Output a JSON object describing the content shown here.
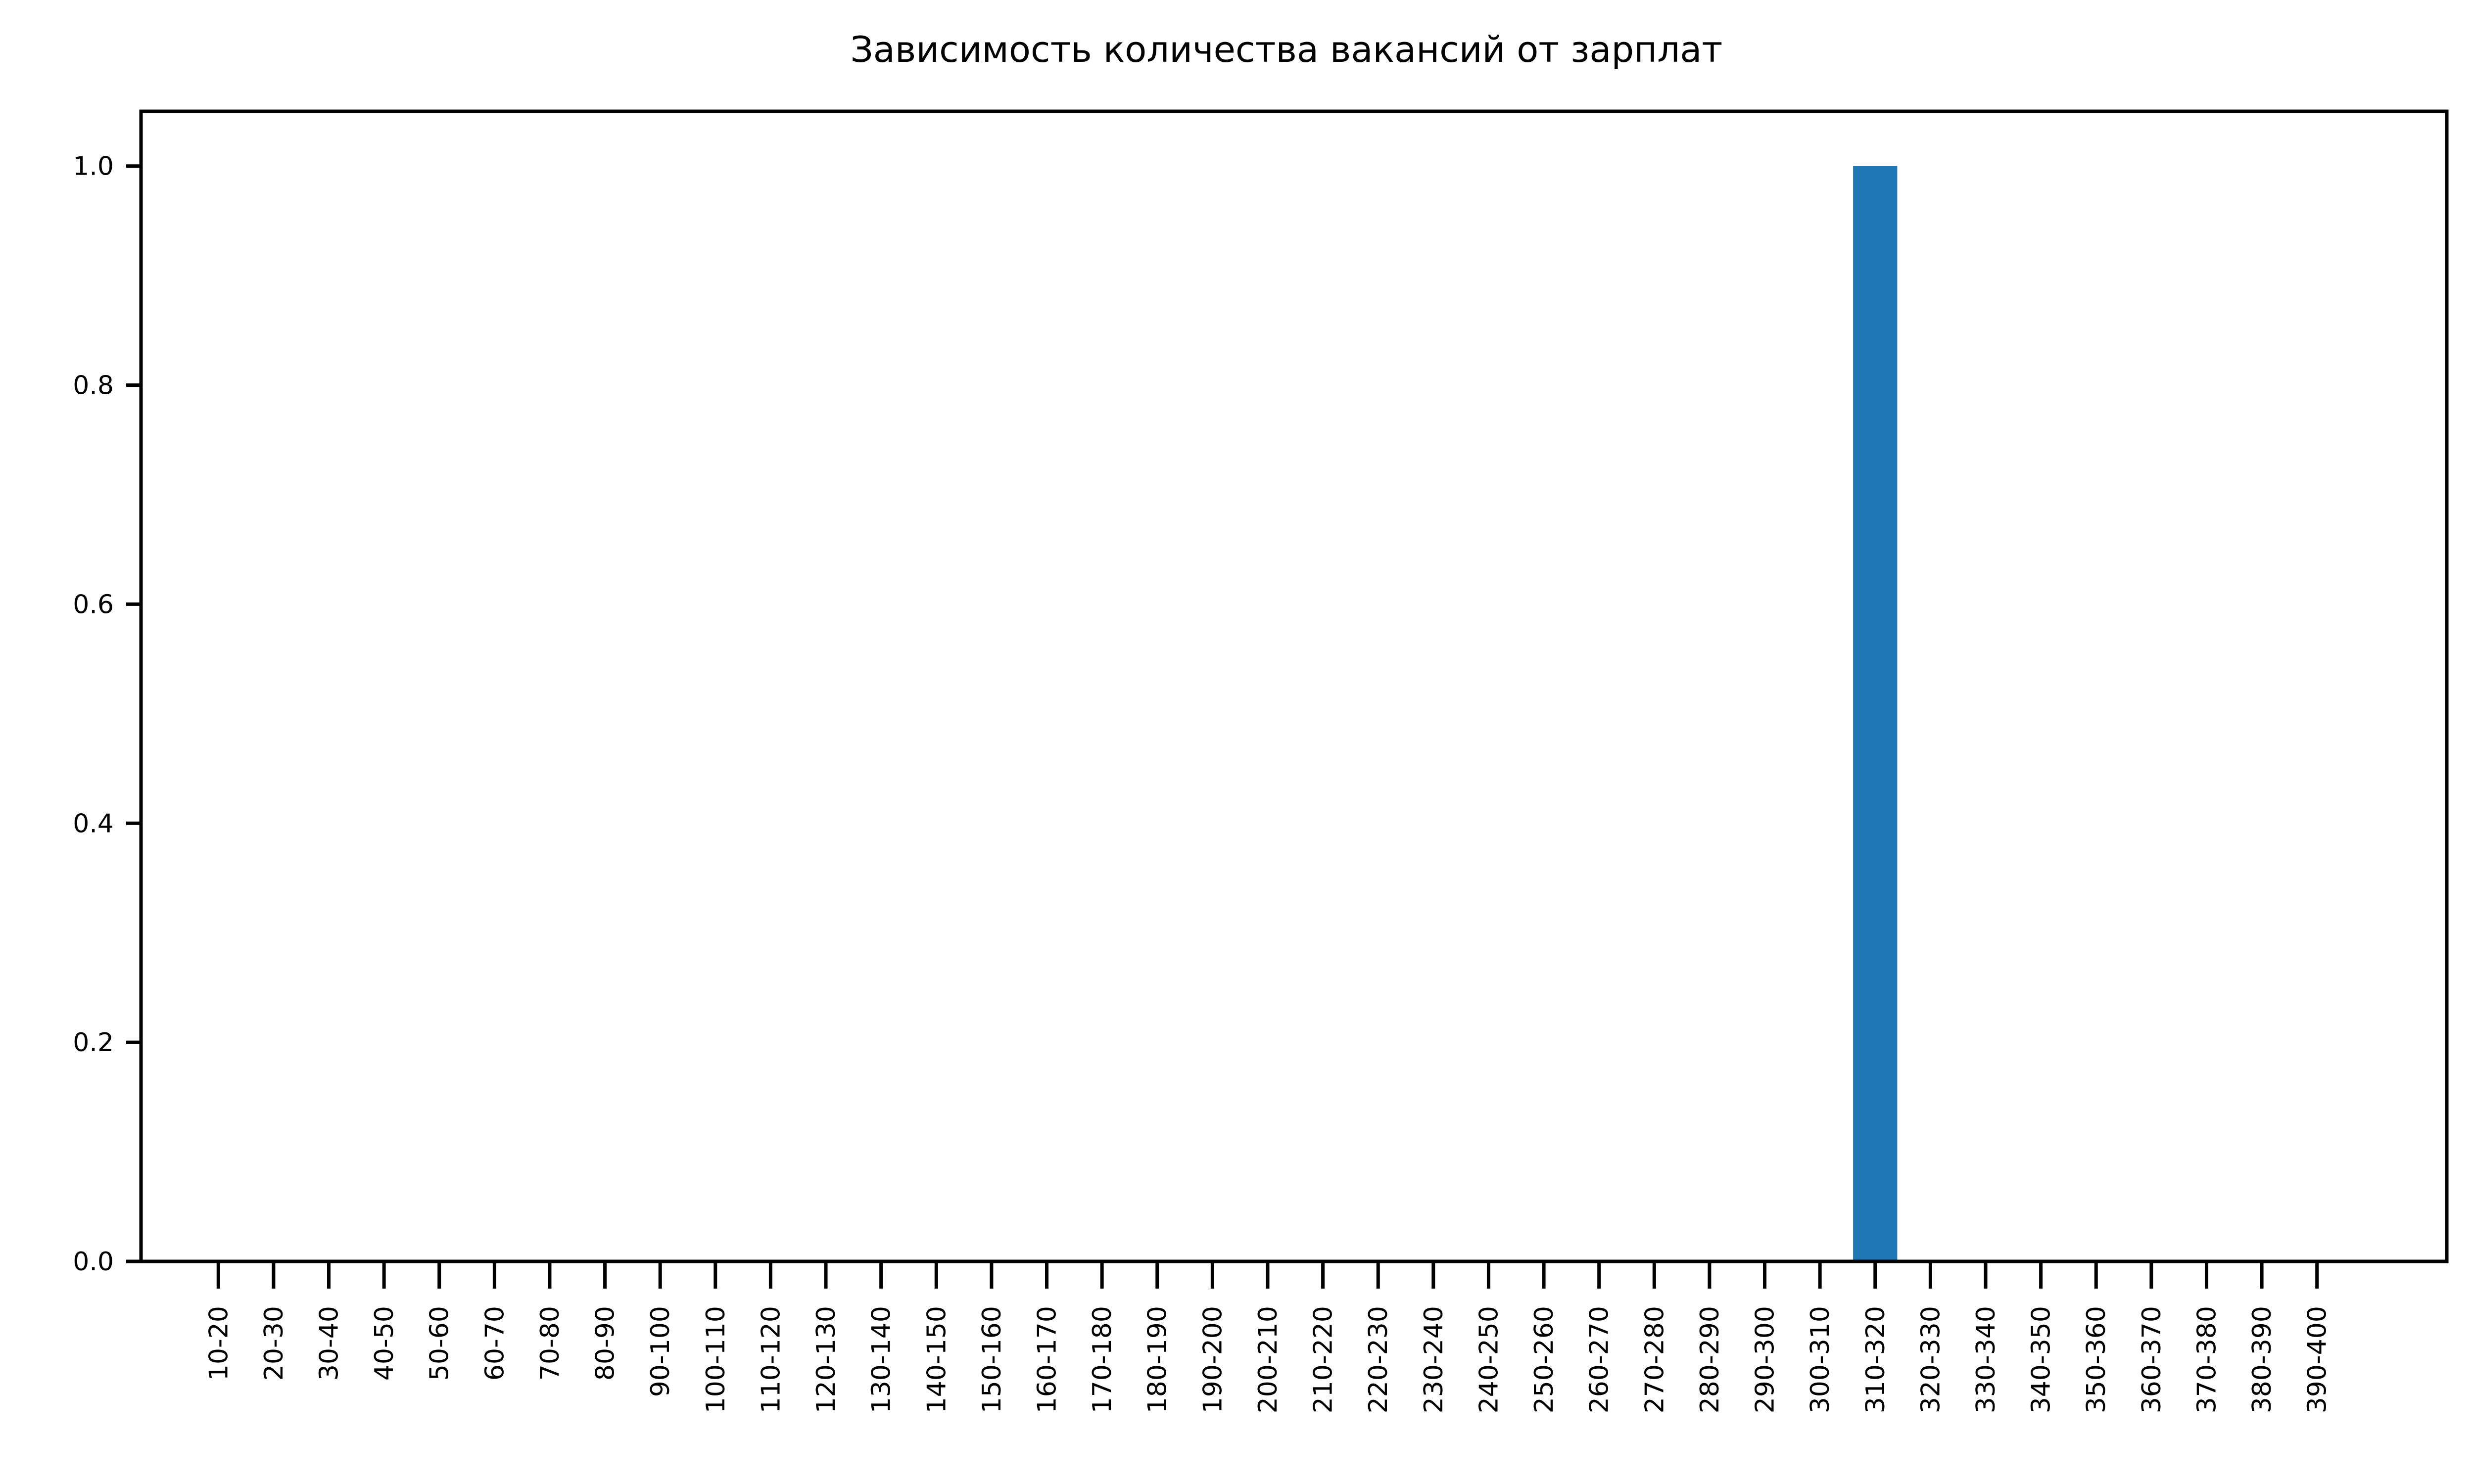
{
  "chart_data": {
    "type": "bar",
    "title": "Зависимость количества вакансий от зарплат",
    "xlabel": "",
    "ylabel": "",
    "categories": [
      "10-20",
      "20-30",
      "30-40",
      "40-50",
      "50-60",
      "60-70",
      "70-80",
      "80-90",
      "90-100",
      "100-110",
      "110-120",
      "120-130",
      "130-140",
      "140-150",
      "150-160",
      "160-170",
      "170-180",
      "180-190",
      "190-200",
      "200-210",
      "210-220",
      "220-230",
      "230-240",
      "240-250",
      "250-260",
      "260-270",
      "270-280",
      "280-290",
      "290-300",
      "300-310",
      "310-320",
      "320-330",
      "330-340",
      "340-350",
      "350-360",
      "360-370",
      "370-380",
      "380-390",
      "390-400"
    ],
    "values": [
      0,
      0,
      0,
      0,
      0,
      0,
      0,
      0,
      0,
      0,
      0,
      0,
      0,
      0,
      0,
      0,
      0,
      0,
      0,
      0,
      0,
      0,
      0,
      0,
      0,
      0,
      0,
      0,
      0,
      0,
      1,
      0,
      0,
      0,
      0,
      0,
      0,
      0,
      0
    ],
    "ylim": [
      0,
      1.05
    ],
    "yticks": [
      0.0,
      0.2,
      0.4,
      0.6,
      0.8,
      1.0
    ],
    "ytick_labels": [
      "0.0",
      "0.2",
      "0.4",
      "0.6",
      "0.8",
      "1.0"
    ],
    "bar_color": "#1f77b4",
    "grid": false,
    "legend": null
  }
}
